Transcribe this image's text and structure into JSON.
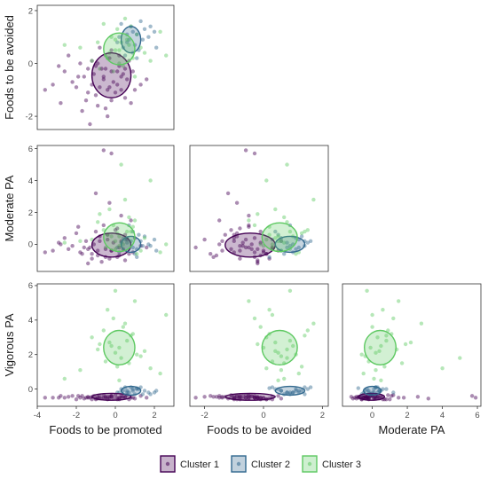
{
  "chart_data": {
    "type": "scatter",
    "grid": false,
    "legend_position": "bottom",
    "legend": [
      {
        "label": "Cluster 1",
        "color": "#440154"
      },
      {
        "label": "Cluster 2",
        "color": "#31688e"
      },
      {
        "label": "Cluster 3",
        "color": "#5ec962"
      }
    ],
    "variables": {
      "promoted": {
        "label": "Foods to be promoted",
        "range": [
          -4,
          3
        ],
        "ticks": [
          -4,
          -2,
          0,
          2
        ]
      },
      "avoided": {
        "label": "Foods to be avoided",
        "range": [
          -2.5,
          2.2
        ],
        "ticks": [
          -2,
          0,
          2
        ]
      },
      "moderate": {
        "label": "Moderate PA",
        "range": [
          -1.7,
          6.2
        ],
        "ticks": [
          0,
          2,
          4,
          6
        ]
      },
      "vigorous": {
        "label": "Vigorous PA",
        "range": [
          -1.0,
          6.1
        ],
        "ticks": [
          0,
          2,
          4,
          6
        ]
      }
    },
    "panels": [
      {
        "x": "promoted",
        "y": "avoided",
        "show_x_title": false,
        "show_y_title": true,
        "show_x_ticks": false,
        "show_y_ticks": true
      },
      {
        "x": "promoted",
        "y": "moderate",
        "show_x_title": false,
        "show_y_title": true,
        "show_x_ticks": false,
        "show_y_ticks": true
      },
      {
        "x": "avoided",
        "y": "moderate",
        "show_x_title": false,
        "show_y_title": false,
        "show_x_ticks": false,
        "show_y_ticks": false
      },
      {
        "x": "promoted",
        "y": "vigorous",
        "show_x_title": true,
        "show_y_title": true,
        "show_x_ticks": true,
        "show_y_ticks": true
      },
      {
        "x": "avoided",
        "y": "vigorous",
        "show_x_title": true,
        "show_y_title": false,
        "show_x_ticks": true,
        "show_y_ticks": false
      },
      {
        "x": "moderate",
        "y": "vigorous",
        "show_x_title": true,
        "show_y_title": false,
        "show_x_ticks": true,
        "show_y_ticks": false
      }
    ],
    "clusters": [
      {
        "name": "Cluster 1",
        "color": "#440154",
        "center": {
          "promoted": -0.2,
          "avoided": -0.45,
          "moderate": -0.05,
          "vigorous": -0.45
        },
        "sd": {
          "promoted": 1.05,
          "avoided": 0.85,
          "moderate": 0.85,
          "vigorous": 0.2
        },
        "ellipse_r": {
          "promoted": 1.0,
          "avoided": 0.85,
          "moderate": 0.75,
          "vigorous": 0.2
        },
        "points": [
          [
            -0.5,
            -0.2,
            -0.3,
            -0.5
          ],
          [
            0.3,
            -1.0,
            0.2,
            -0.4
          ],
          [
            -1.2,
            0.1,
            -0.6,
            -0.6
          ],
          [
            -0.8,
            -0.9,
            0.5,
            -0.4
          ],
          [
            0.1,
            -0.3,
            -0.8,
            -0.5
          ],
          [
            -1.6,
            -0.5,
            -0.2,
            -0.55
          ],
          [
            0.6,
            -0.6,
            0.3,
            -0.35
          ],
          [
            -0.2,
            -1.4,
            -0.4,
            -0.45
          ],
          [
            -1.0,
            -0.1,
            0.8,
            -0.6
          ],
          [
            0.9,
            -0.3,
            -0.5,
            -0.5
          ],
          [
            -2.2,
            -0.7,
            -0.1,
            -0.4
          ],
          [
            -0.3,
            0.2,
            -0.9,
            -0.55
          ],
          [
            0.5,
            -1.3,
            0.6,
            -0.45
          ],
          [
            -1.4,
            -1.1,
            -0.3,
            -0.5
          ],
          [
            -0.6,
            -0.5,
            1.2,
            -0.35
          ],
          [
            0.2,
            0.3,
            -0.2,
            -0.6
          ],
          [
            -2.6,
            -0.3,
            0.4,
            -0.5
          ],
          [
            -0.9,
            -1.6,
            -0.7,
            -0.45
          ],
          [
            1.3,
            -0.8,
            -0.1,
            -0.4
          ],
          [
            -0.1,
            -0.7,
            0.1,
            -0.55
          ],
          [
            -1.8,
            0.0,
            -0.5,
            -0.5
          ],
          [
            -0.4,
            -2.0,
            0.3,
            -0.45
          ],
          [
            0.7,
            0.1,
            -0.6,
            -0.6
          ],
          [
            -1.1,
            -0.4,
            0.0,
            -0.4
          ],
          [
            -3.2,
            -0.8,
            -0.4,
            -0.5
          ],
          [
            0.0,
            -1.1,
            0.9,
            -0.35
          ],
          [
            -0.7,
            -0.2,
            -1.1,
            -0.55
          ],
          [
            -1.5,
            -1.4,
            0.2,
            -0.5
          ],
          [
            0.4,
            -0.4,
            -0.3,
            -0.45
          ],
          [
            -2.0,
            -0.9,
            0.7,
            -0.6
          ],
          [
            -0.2,
            0.5,
            -0.4,
            -0.4
          ],
          [
            -1.3,
            -2.3,
            -0.2,
            -0.5
          ],
          [
            1.0,
            -1.0,
            0.4,
            -0.55
          ],
          [
            -0.5,
            -1.7,
            -0.8,
            -0.45
          ],
          [
            -2.9,
            -0.1,
            0.1,
            -0.5
          ],
          [
            -1.7,
            -1.8,
            -0.6,
            -0.4
          ],
          [
            0.8,
            -1.5,
            1.5,
            -0.5
          ],
          [
            -0.3,
            -0.9,
            2.6,
            -0.45
          ],
          [
            -1.0,
            -1.2,
            3.2,
            -0.55
          ],
          [
            -0.6,
            -0.6,
            5.9,
            -0.5
          ],
          [
            -0.2,
            -0.3,
            5.7,
            -0.4
          ],
          [
            0.1,
            -0.8,
            1.0,
            -0.6
          ],
          [
            -3.6,
            -1.0,
            -0.5,
            -0.5
          ],
          [
            -2.4,
            0.3,
            -0.3,
            -0.45
          ],
          [
            0.5,
            -0.2,
            -1.0,
            -0.5
          ],
          [
            -0.8,
            0.6,
            0.2,
            -0.55
          ],
          [
            -1.9,
            -0.5,
            1.1,
            -0.4
          ],
          [
            0.2,
            -0.1,
            -0.7,
            -0.5
          ],
          [
            -1.2,
            -0.8,
            -0.9,
            -0.45
          ],
          [
            -0.4,
            -1.0,
            0.6,
            -0.6
          ],
          [
            1.6,
            -0.6,
            -0.2,
            -0.5
          ],
          [
            -2.8,
            -1.5,
            0.0,
            -0.4
          ],
          [
            -0.9,
            0.0,
            -0.4,
            -0.55
          ],
          [
            0.3,
            -0.5,
            1.8,
            -0.5
          ],
          [
            -1.4,
            -0.2,
            -1.2,
            -0.45
          ]
        ]
      },
      {
        "name": "Cluster 2",
        "color": "#31688e",
        "center": {
          "promoted": 0.8,
          "avoided": 0.9,
          "moderate": 0.0,
          "vigorous": -0.1
        },
        "sd": {
          "promoted": 0.6,
          "avoided": 0.45,
          "moderate": 0.55,
          "vigorous": 0.25
        },
        "ellipse_r": {
          "promoted": 0.5,
          "avoided": 0.5,
          "moderate": 0.5,
          "vigorous": 0.25
        },
        "points": [
          [
            0.6,
            0.8,
            0.1,
            -0.2
          ],
          [
            1.1,
            1.1,
            -0.3,
            0.0
          ],
          [
            0.4,
            0.6,
            0.4,
            -0.1
          ],
          [
            1.4,
            0.9,
            -0.1,
            -0.3
          ],
          [
            0.8,
            1.4,
            0.2,
            0.1
          ],
          [
            0.2,
            1.0,
            -0.5,
            -0.2
          ],
          [
            1.2,
            0.5,
            0.6,
            0.0
          ],
          [
            0.9,
            1.2,
            -0.2,
            -0.1
          ],
          [
            1.7,
            1.0,
            0.0,
            -0.2
          ],
          [
            0.5,
            0.3,
            0.3,
            0.1
          ],
          [
            1.0,
            0.7,
            -0.6,
            -0.3
          ],
          [
            1.5,
            1.3,
            0.5,
            -0.1
          ],
          [
            0.3,
            1.5,
            0.1,
            0.0
          ],
          [
            0.7,
            0.9,
            1.2,
            -0.2
          ],
          [
            2.1,
            0.6,
            -0.4,
            -0.1
          ],
          [
            1.3,
            1.6,
            0.2,
            0.1
          ],
          [
            0.1,
            0.8,
            -0.2,
            -0.2
          ],
          [
            0.9,
            0.4,
            0.8,
            0.0
          ],
          [
            1.8,
            1.4,
            -0.1,
            -0.3
          ],
          [
            0.6,
            1.1,
            0.4,
            -0.1
          ],
          [
            1.1,
            0.2,
            -0.8,
            0.05
          ],
          [
            2.0,
            1.2,
            0.3,
            -0.2
          ]
        ]
      },
      {
        "name": "Cluster 3",
        "color": "#5ec962",
        "center": {
          "promoted": 0.2,
          "avoided": 0.55,
          "moderate": 0.45,
          "vigorous": 2.4
        },
        "sd": {
          "promoted": 1.0,
          "avoided": 0.6,
          "moderate": 0.9,
          "vigorous": 1.2
        },
        "ellipse_r": {
          "promoted": 0.8,
          "avoided": 0.6,
          "moderate": 0.9,
          "vigorous": 1.0
        },
        "points": [
          [
            0.0,
            0.5,
            0.2,
            2.1
          ],
          [
            0.6,
            0.9,
            0.8,
            2.8
          ],
          [
            -0.5,
            0.3,
            -0.2,
            1.6
          ],
          [
            0.9,
            0.2,
            1.1,
            3.2
          ],
          [
            -0.2,
            1.0,
            0.5,
            2.5
          ],
          [
            1.3,
            0.6,
            -0.4,
            1.9
          ],
          [
            -0.9,
            0.8,
            1.4,
            2.3
          ],
          [
            0.4,
            -0.1,
            0.0,
            3.6
          ],
          [
            0.1,
            1.3,
            0.7,
            1.3
          ],
          [
            -0.3,
            0.4,
            2.2,
            2.7
          ],
          [
            1.1,
            1.1,
            -0.6,
            2.0
          ],
          [
            -1.2,
            0.1,
            0.3,
            3.0
          ],
          [
            0.7,
            0.7,
            1.7,
            1.5
          ],
          [
            0.2,
            0.0,
            -0.1,
            2.4
          ],
          [
            -0.6,
            1.5,
            0.9,
            3.4
          ],
          [
            1.5,
            0.4,
            0.4,
            2.2
          ],
          [
            0.3,
            0.8,
            5.0,
            1.8
          ],
          [
            -0.1,
            -0.3,
            1.2,
            4.1
          ],
          [
            -1.8,
            0.6,
            0.2,
            1.1
          ],
          [
            2.3,
            1.2,
            -0.5,
            0.9
          ],
          [
            0.5,
            1.7,
            2.8,
            3.8
          ],
          [
            -0.4,
            0.2,
            0.6,
            4.6
          ],
          [
            1.0,
            -0.5,
            1.5,
            5.1
          ],
          [
            0.0,
            0.9,
            -0.3,
            5.7
          ],
          [
            -2.6,
            0.7,
            0.1,
            0.6
          ],
          [
            1.8,
            0.1,
            4.0,
            1.2
          ],
          [
            0.8,
            1.4,
            0.8,
            3.1
          ],
          [
            -0.8,
            -0.2,
            1.9,
            2.6
          ],
          [
            0.2,
            0.5,
            0.5,
            0.5
          ],
          [
            2.6,
            0.3,
            0.0,
            4.3
          ]
        ]
      }
    ]
  }
}
